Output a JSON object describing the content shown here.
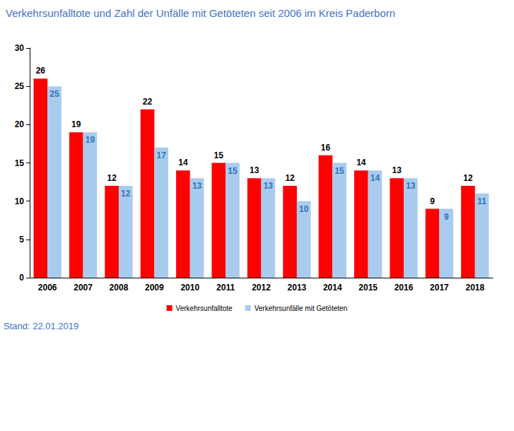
{
  "chart_data": {
    "type": "bar",
    "title": "Verkehrsunfalltote und Zahl der Unfälle mit Getöteten seit 2006 im Kreis Paderborn",
    "annotations": [
      "Stand: 22.01.2019"
    ],
    "categories": [
      "2006",
      "2007",
      "2008",
      "2009",
      "2010",
      "2011",
      "2012",
      "2013",
      "2014",
      "2015",
      "2016",
      "2017",
      "2018"
    ],
    "series": [
      {
        "name": "Verkehrsunfalltote",
        "color": "#ff0000",
        "values": [
          26,
          19,
          12,
          22,
          14,
          15,
          13,
          12,
          16,
          14,
          13,
          9,
          12
        ]
      },
      {
        "name": "Verkehrsunfälle mit Getöteten",
        "color": "#a9cbee",
        "values": [
          25,
          19,
          12,
          17,
          13,
          15,
          13,
          10,
          15,
          14,
          13,
          9,
          11
        ]
      }
    ],
    "ylim": [
      0,
      30
    ],
    "yticks": [
      0,
      5,
      10,
      15,
      20,
      25,
      30
    ],
    "grid": false,
    "legend": "bottom",
    "data_labels": true
  }
}
